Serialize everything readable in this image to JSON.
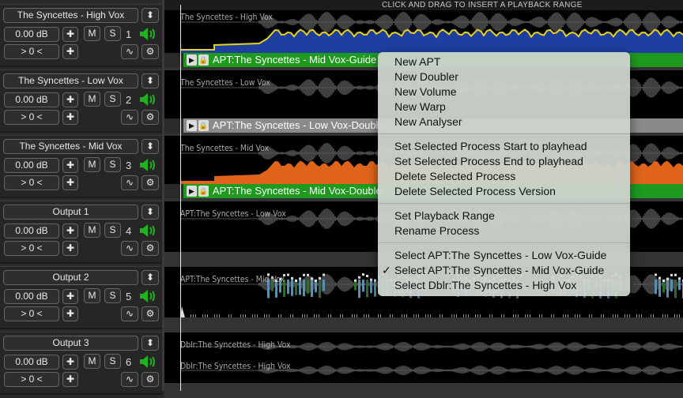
{
  "timeline": {
    "hint": "CLICK AND DRAG TO INSERT A PLAYBACK RANGE"
  },
  "tracks": [
    {
      "name": "The Syncettes - High Vox",
      "gain": "0.00 dB",
      "pan": "> 0 <",
      "mute": "M",
      "solo": "S",
      "number": "1",
      "lane_label": "The Syncettes - High Vox",
      "process": "APT:The Syncettes - Mid Vox-Guide",
      "process_color": "#1f9a1f",
      "fill_color": "#1f3fa0",
      "line_color": "#e6d21e"
    },
    {
      "name": "The Syncettes - Low Vox",
      "gain": "0.00 dB",
      "pan": "> 0 <",
      "mute": "M",
      "solo": "S",
      "number": "2",
      "lane_label": "The Syncettes - Low Vox",
      "process": "APT:The Syncettes - Low Vox-Doubler",
      "process_color": "#8a8a8a"
    },
    {
      "name": "The Syncettes - Mid Vox",
      "gain": "0.00 dB",
      "pan": "> 0 <",
      "mute": "M",
      "solo": "S",
      "number": "3",
      "lane_label": "The Syncettes - Mid Vox",
      "process": "APT:The Syncettes - Mid Vox-Doubler",
      "process_color": "#1f9a1f",
      "fill_color": "#e0641a"
    },
    {
      "name": "Output 1",
      "gain": "0.00 dB",
      "pan": "> 0 <",
      "mute": "M",
      "solo": "S",
      "number": "4",
      "lane_label": "APT:The Syncettes - Low Vox"
    },
    {
      "name": "Output 2",
      "gain": "0.00 dB",
      "pan": "> 0 <",
      "mute": "M",
      "solo": "S",
      "number": "5",
      "lane_label": "APT:The Syncettes - Mid Vox"
    },
    {
      "name": "Output 3",
      "gain": "0.00 dB",
      "pan": "> 0 <",
      "mute": "M",
      "solo": "S",
      "number": "6",
      "lane_label": "Dblr:The Syncettes - High Vox",
      "lane_label_2": "Dblr:The Syncettes - High Vox"
    }
  ],
  "menu": {
    "groups": [
      [
        {
          "label": "New APT"
        },
        {
          "label": "New Doubler"
        },
        {
          "label": "New Volume"
        },
        {
          "label": "New Warp"
        },
        {
          "label": "New Analyser"
        }
      ],
      [
        {
          "label": "Set Selected Process Start to playhead"
        },
        {
          "label": "Set Selected Process End to playhead"
        },
        {
          "label": "Delete Selected Process"
        },
        {
          "label": "Delete Selected Process Version"
        }
      ],
      [
        {
          "label": "Set Playback Range"
        },
        {
          "label": "Rename Process"
        }
      ],
      [
        {
          "label": "Select APT:The Syncettes - Low Vox-Guide"
        },
        {
          "label": "Select APT:The Syncettes - Mid Vox-Guide",
          "checked": true,
          "check": "✓"
        },
        {
          "label": "Select Dblr:The Syncettes - High Vox"
        }
      ]
    ]
  },
  "colors": {
    "speaker": "#1fb41f",
    "background": "#2a2a2a"
  }
}
